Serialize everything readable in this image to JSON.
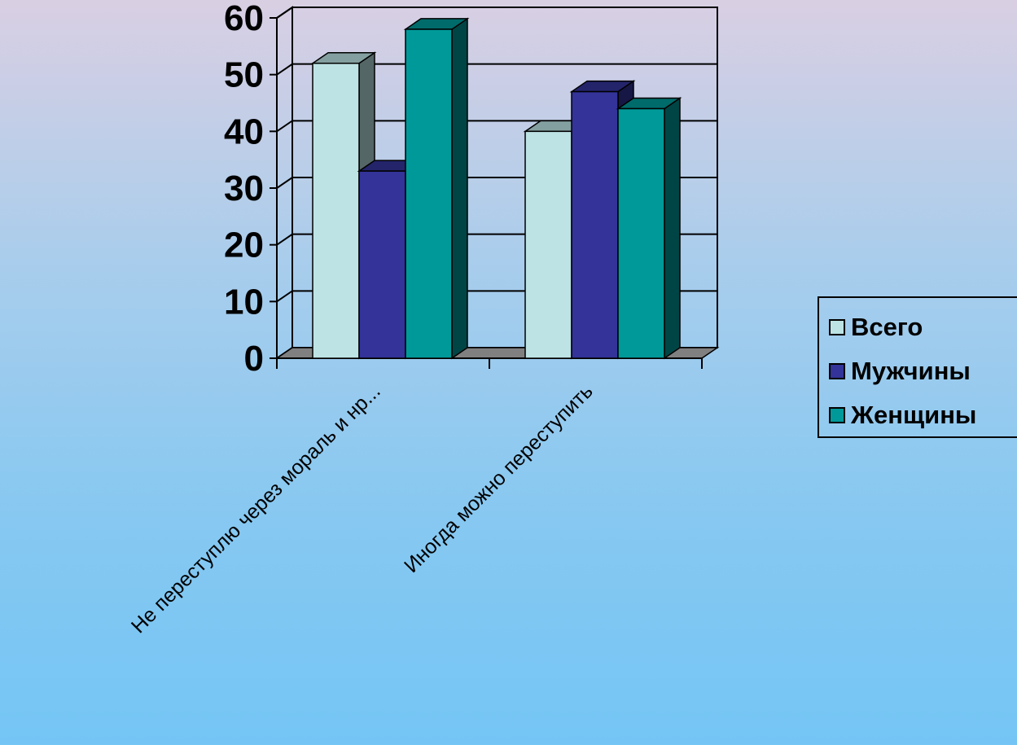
{
  "chart_data": {
    "type": "bar",
    "title": "",
    "xlabel": "",
    "ylabel": "",
    "categories": [
      "Не переступлю через мораль и нр...",
      "Иногда можно переступить"
    ],
    "series": [
      {
        "name": "Всего",
        "values": [
          52,
          40
        ],
        "color": "#bde3e4"
      },
      {
        "name": "Мужчины",
        "values": [
          33,
          47
        ],
        "color": "#333399"
      },
      {
        "name": "Женщины",
        "values": [
          58,
          44
        ],
        "color": "#009999"
      }
    ],
    "ylim": [
      0,
      60
    ],
    "yticks": [
      "0",
      "10",
      "20",
      "30",
      "40",
      "50",
      "60"
    ],
    "grid": true,
    "legend_position": "right",
    "style": "3d-clustered-column"
  }
}
